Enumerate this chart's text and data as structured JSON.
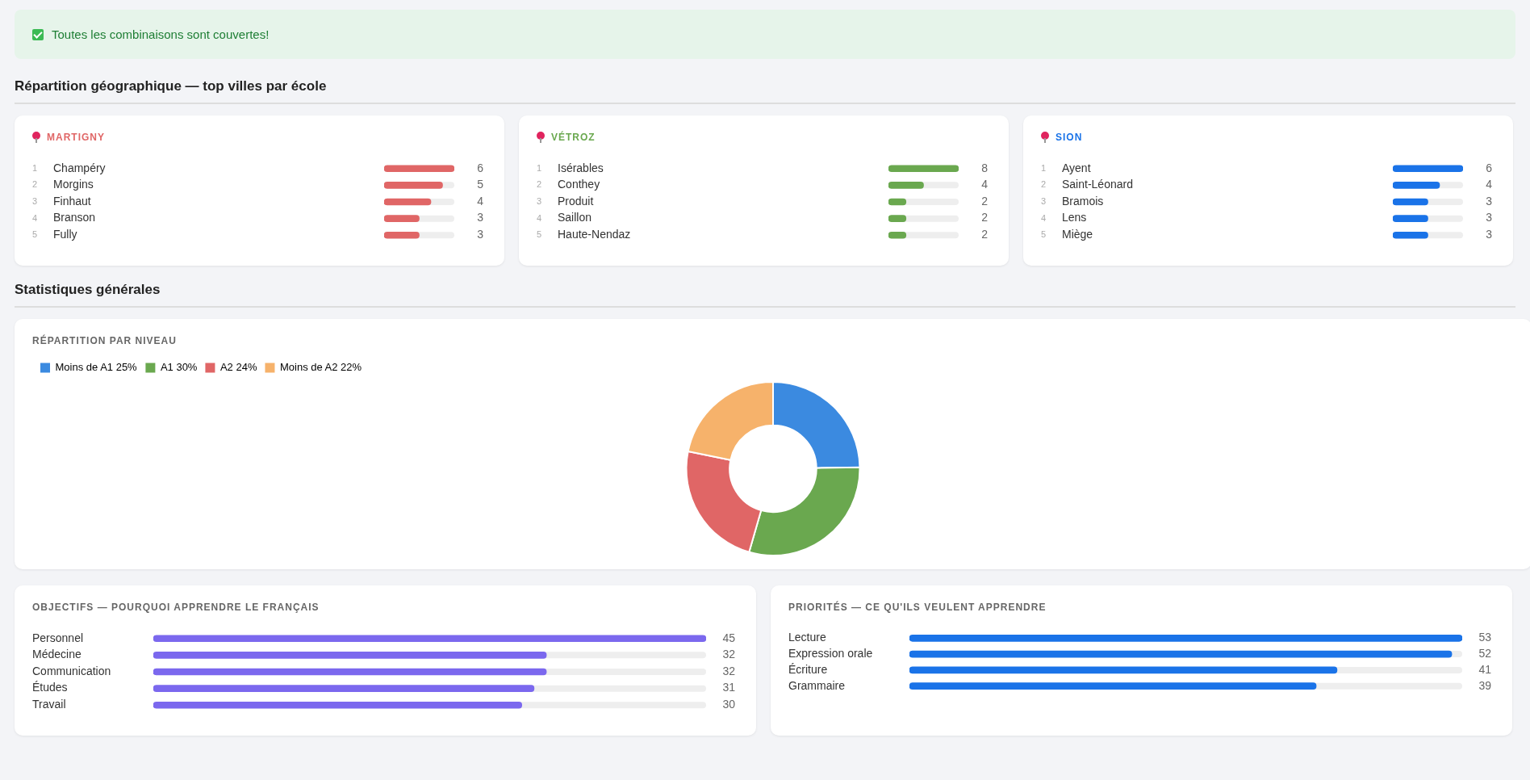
{
  "chart_data": [
    {
      "type": "other",
      "title": "Toutes les combinaisons sont couvertes!"
    },
    {
      "type": "other",
      "title": "Répartition géographique — top villes par école"
    },
    {
      "type": "bar",
      "orientation": "horizontal",
      "title": "MARTIGNY",
      "color": "#e06666",
      "categories": [
        "Champéry",
        "Morgins",
        "Finhaut",
        "Branson",
        "Fully"
      ],
      "values": [
        6,
        5,
        4,
        3,
        3
      ],
      "xlim": [
        0,
        6
      ],
      "data_labels": true,
      "tick_labels": "y",
      "annotations": [
        "1",
        "2",
        "3",
        "4",
        "5"
      ]
    },
    {
      "type": "bar",
      "orientation": "horizontal",
      "title": "VÉTROZ",
      "color": "#6aa84f",
      "categories": [
        "Isérables",
        "Conthey",
        "Produit",
        "Saillon",
        "Haute-Nendaz"
      ],
      "values": [
        8,
        4,
        2,
        2,
        2
      ],
      "xlim": [
        0,
        8
      ],
      "data_labels": true,
      "tick_labels": "y",
      "annotations": [
        "1",
        "2",
        "3",
        "4",
        "5"
      ]
    },
    {
      "type": "bar",
      "orientation": "horizontal",
      "title": "SION",
      "color": "#1a73e8",
      "categories": [
        "Ayent",
        "Saint-Léonard",
        "Bramois",
        "Lens",
        "Miège"
      ],
      "values": [
        6,
        4,
        3,
        3,
        3
      ],
      "xlim": [
        0,
        6
      ],
      "data_labels": true,
      "tick_labels": "y",
      "annotations": [
        "1",
        "2",
        "3",
        "4",
        "5"
      ]
    },
    {
      "type": "other",
      "title": "Statistiques générales"
    },
    {
      "type": "donut",
      "title": "RÉPARTITION PAR NIVEAU",
      "categories": [
        "Moins de A1",
        "A1",
        "A2",
        "Moins de A2"
      ],
      "values": [
        25,
        30,
        24,
        22
      ],
      "value_labels": [
        "25%",
        "30%",
        "24%",
        "22%"
      ],
      "colors": [
        "#3b8ae0",
        "#6aa84f",
        "#e06666",
        "#f6b26b"
      ],
      "legend": "top left"
    },
    {
      "type": "bar",
      "orientation": "horizontal",
      "title": "OBJECTIFS — POURQUOI APPRENDRE LE FRANÇAIS",
      "color": "#7b68ee",
      "categories": [
        "Personnel",
        "Médecine",
        "Communication",
        "Études",
        "Travail"
      ],
      "values": [
        45,
        32,
        32,
        31,
        30
      ],
      "xlim": [
        0,
        45
      ],
      "data_labels": true,
      "tick_labels": "y"
    },
    {
      "type": "bar",
      "orientation": "horizontal",
      "title": "PRIORITÉS — CE QU'ILS VEULENT APPRENDRE",
      "color": "#1a73e8",
      "categories": [
        "Lecture",
        "Expression orale",
        "Écriture",
        "Grammaire"
      ],
      "values": [
        53,
        52,
        41,
        39
      ],
      "xlim": [
        0,
        53
      ],
      "data_labels": true,
      "tick_labels": "y"
    }
  ]
}
